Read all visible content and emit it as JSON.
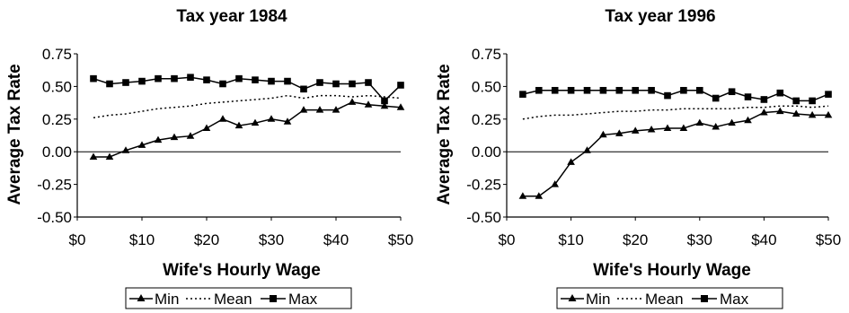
{
  "colors": {
    "ink": "#000000",
    "background": "#ffffff"
  },
  "chart_data": [
    {
      "type": "line",
      "title": "Tax year 1984",
      "xlabel": "Wife's Hourly Wage",
      "ylabel": "Average Tax Rate",
      "xlim": [
        0,
        50
      ],
      "ylim": [
        -0.5,
        0.75
      ],
      "xticks": [
        0,
        10,
        20,
        30,
        40,
        50
      ],
      "xtick_labels": [
        "$0",
        "$10",
        "$20",
        "$30",
        "$40",
        "$50"
      ],
      "yticks": [
        0.75,
        0.5,
        0.25,
        0.0,
        -0.25,
        -0.5
      ],
      "ytick_labels": [
        "0.75",
        "0.50",
        "0.25",
        "0.00",
        "-0.25",
        "-0.50"
      ],
      "zero_line": true,
      "grid": false,
      "legend": "bottom-center",
      "series": [
        {
          "name": "Min",
          "style": "solid-triangle",
          "x": [
            2.5,
            5,
            7.5,
            10,
            12.5,
            15,
            17.5,
            20,
            22.5,
            25,
            27.5,
            30,
            32.5,
            35,
            37.5,
            40,
            42.5,
            45,
            47.5,
            50
          ],
          "y": [
            -0.04,
            -0.04,
            0.01,
            0.05,
            0.09,
            0.11,
            0.12,
            0.18,
            0.25,
            0.2,
            0.22,
            0.25,
            0.23,
            0.32,
            0.32,
            0.32,
            0.38,
            0.36,
            0.35,
            0.34
          ]
        },
        {
          "name": "Mean",
          "style": "dotted",
          "x": [
            2.5,
            5,
            7.5,
            10,
            12.5,
            15,
            17.5,
            20,
            22.5,
            25,
            27.5,
            30,
            32.5,
            35,
            37.5,
            40,
            42.5,
            45,
            47.5,
            50
          ],
          "y": [
            0.26,
            0.28,
            0.29,
            0.31,
            0.33,
            0.34,
            0.35,
            0.37,
            0.38,
            0.39,
            0.4,
            0.41,
            0.43,
            0.41,
            0.43,
            0.43,
            0.42,
            0.43,
            0.42,
            0.41
          ]
        },
        {
          "name": "Max",
          "style": "solid-square",
          "x": [
            2.5,
            5,
            7.5,
            10,
            12.5,
            15,
            17.5,
            20,
            22.5,
            25,
            27.5,
            30,
            32.5,
            35,
            37.5,
            40,
            42.5,
            45,
            47.5,
            50
          ],
          "y": [
            0.56,
            0.52,
            0.53,
            0.54,
            0.56,
            0.56,
            0.57,
            0.55,
            0.52,
            0.56,
            0.55,
            0.54,
            0.54,
            0.48,
            0.53,
            0.52,
            0.52,
            0.53,
            0.39,
            0.51
          ]
        }
      ]
    },
    {
      "type": "line",
      "title": "Tax year 1996",
      "xlabel": "Wife's Hourly Wage",
      "ylabel": "Average Tax Rate",
      "xlim": [
        0,
        50
      ],
      "ylim": [
        -0.5,
        0.75
      ],
      "xticks": [
        0,
        10,
        20,
        30,
        40,
        50
      ],
      "xtick_labels": [
        "$0",
        "$10",
        "$20",
        "$30",
        "$40",
        "$50"
      ],
      "yticks": [
        0.75,
        0.5,
        0.25,
        0.0,
        -0.25,
        -0.5
      ],
      "ytick_labels": [
        "0.75",
        "0.50",
        "0.25",
        "0.00",
        "-0.25",
        "-0.50"
      ],
      "zero_line": true,
      "grid": false,
      "legend": "bottom-center",
      "series": [
        {
          "name": "Min",
          "style": "solid-triangle",
          "x": [
            2.5,
            5,
            7.5,
            10,
            12.5,
            15,
            17.5,
            20,
            22.5,
            25,
            27.5,
            30,
            32.5,
            35,
            37.5,
            40,
            42.5,
            45,
            47.5,
            50
          ],
          "y": [
            -0.34,
            -0.34,
            -0.25,
            -0.08,
            0.01,
            0.13,
            0.14,
            0.16,
            0.17,
            0.18,
            0.18,
            0.22,
            0.19,
            0.22,
            0.24,
            0.3,
            0.31,
            0.29,
            0.28,
            0.28
          ]
        },
        {
          "name": "Mean",
          "style": "dotted",
          "x": [
            2.5,
            5,
            7.5,
            10,
            12.5,
            15,
            17.5,
            20,
            22.5,
            25,
            27.5,
            30,
            32.5,
            35,
            37.5,
            40,
            42.5,
            45,
            47.5,
            50
          ],
          "y": [
            0.25,
            0.27,
            0.28,
            0.28,
            0.29,
            0.3,
            0.31,
            0.31,
            0.32,
            0.32,
            0.33,
            0.33,
            0.33,
            0.33,
            0.34,
            0.34,
            0.35,
            0.35,
            0.34,
            0.35
          ]
        },
        {
          "name": "Max",
          "style": "solid-square",
          "x": [
            2.5,
            5,
            7.5,
            10,
            12.5,
            15,
            17.5,
            20,
            22.5,
            25,
            27.5,
            30,
            32.5,
            35,
            37.5,
            40,
            42.5,
            45,
            47.5,
            50
          ],
          "y": [
            0.44,
            0.47,
            0.47,
            0.47,
            0.47,
            0.47,
            0.47,
            0.47,
            0.47,
            0.43,
            0.47,
            0.47,
            0.41,
            0.46,
            0.42,
            0.4,
            0.45,
            0.39,
            0.39,
            0.44
          ]
        }
      ]
    }
  ]
}
